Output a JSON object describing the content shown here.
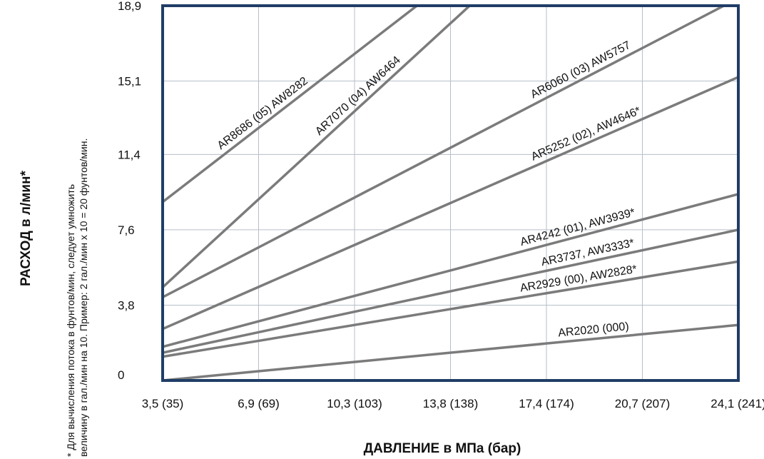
{
  "chart_data": {
    "type": "line",
    "title": "",
    "xlabel": "ДАВЛЕНИЕ в МПа (бар)",
    "ylabel": "РАСХОД в л/мин*",
    "footnote_line1": "* Для вычисления потока в фунтов/мин, следует умножить",
    "footnote_line2": "величину в гал./мин на 10. Пример: 2 гал./мин х 10 = 20 фунтов/мин.",
    "x_ticks": [
      "3,5 (35)",
      "6,9 (69)",
      "10,3 (103)",
      "13,8 (138)",
      "17,4 (174)",
      "20,7 (207)",
      "24,1 (241)"
    ],
    "y_ticks": [
      "0",
      "3,8",
      "7,6",
      "11,4",
      "15,1",
      "18,9"
    ],
    "xlim": [
      0,
      6
    ],
    "ylim": [
      0,
      18.9
    ],
    "grid": true,
    "line_color": "#7b7b7b",
    "frame_color": "#1f3d66",
    "series": [
      {
        "name": "AR8686 (05) AW8282",
        "points": [
          [
            0,
            9.0
          ],
          [
            2.65,
            18.9
          ]
        ]
      },
      {
        "name": "AR7070 (04) AW6464",
        "points": [
          [
            0,
            4.7
          ],
          [
            3.2,
            18.9
          ]
        ]
      },
      {
        "name": "AR6060 (03) AW5757",
        "points": [
          [
            0,
            4.2
          ],
          [
            5.85,
            18.9
          ]
        ]
      },
      {
        "name": "AR5252 (02), AW4646*",
        "points": [
          [
            0,
            2.6
          ],
          [
            6,
            15.3
          ]
        ]
      },
      {
        "name": "AR4242 (01), AW3939*",
        "points": [
          [
            0,
            1.7
          ],
          [
            6,
            9.4
          ]
        ]
      },
      {
        "name": "AR3737, AW3333*",
        "points": [
          [
            0,
            1.4
          ],
          [
            6,
            7.6
          ]
        ]
      },
      {
        "name": "AR2929 (00), AW2828*",
        "points": [
          [
            0,
            1.2
          ],
          [
            6,
            6.0
          ]
        ]
      },
      {
        "name": "AR2020 (000)",
        "points": [
          [
            0,
            0.0
          ],
          [
            6,
            2.8
          ]
        ]
      }
    ]
  }
}
